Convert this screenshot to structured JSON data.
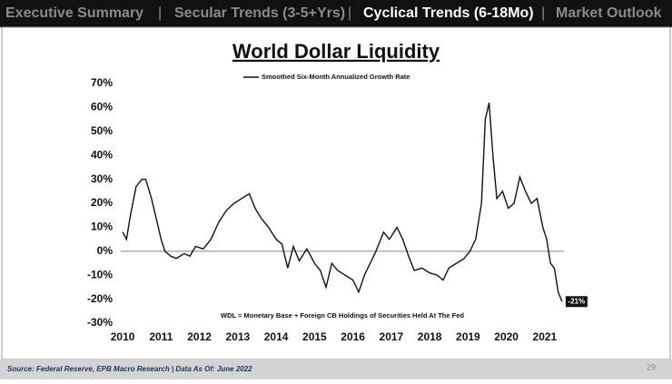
{
  "nav": [
    {
      "label": "Executive Summary",
      "active": false
    },
    {
      "label": "Secular Trends (3-5+Yrs)",
      "active": false
    },
    {
      "label": "Cyclical Trends (6-18Mo)",
      "active": true
    },
    {
      "label": "Market Outlook",
      "active": false
    }
  ],
  "chart_data": {
    "type": "line",
    "title": "World Dollar Liquidity",
    "note": "WDL = Monetary Base + Foreign CB Holdings of Securities Held At The Fed",
    "zero_line": true,
    "xlim": [
      2009.95,
      2021.5
    ],
    "xticks": [
      2010,
      2011,
      2012,
      2013,
      2014,
      2015,
      2016,
      2017,
      2018,
      2019,
      2020,
      2021
    ],
    "ylim": [
      -30,
      70
    ],
    "yticks": [
      {
        "value": -30,
        "label": "-30%"
      },
      {
        "value": -20,
        "label": "-20%"
      },
      {
        "value": -10,
        "label": "-10%"
      },
      {
        "value": 0,
        "label": "0%"
      },
      {
        "value": 10,
        "label": "10%"
      },
      {
        "value": 20,
        "label": "20%"
      },
      {
        "value": 30,
        "label": "30%"
      },
      {
        "value": 40,
        "label": "40%"
      },
      {
        "value": 50,
        "label": "50%"
      },
      {
        "value": 60,
        "label": "60%"
      },
      {
        "value": 70,
        "label": "70%"
      }
    ],
    "x": [
      2010.0,
      2010.1,
      2010.2,
      2010.35,
      2010.5,
      2010.6,
      2010.75,
      2010.9,
      2011.0,
      2011.1,
      2011.25,
      2011.4,
      2011.6,
      2011.75,
      2011.9,
      2012.1,
      2012.3,
      2012.5,
      2012.7,
      2012.9,
      2013.1,
      2013.3,
      2013.45,
      2013.6,
      2013.8,
      2014.0,
      2014.15,
      2014.3,
      2014.45,
      2014.6,
      2014.8,
      2015.0,
      2015.15,
      2015.3,
      2015.45,
      2015.6,
      2015.8,
      2016.0,
      2016.15,
      2016.3,
      2016.45,
      2016.6,
      2016.8,
      2016.95,
      2017.15,
      2017.3,
      2017.45,
      2017.6,
      2017.8,
      2018.0,
      2018.2,
      2018.35,
      2018.5,
      2018.7,
      2018.9,
      2019.05,
      2019.2,
      2019.35,
      2019.45,
      2019.55,
      2019.65,
      2019.75,
      2019.9,
      2020.05,
      2020.2,
      2020.35,
      2020.5,
      2020.65,
      2020.8,
      2020.95,
      2021.05,
      2021.15,
      2021.25,
      2021.35,
      2021.45
    ],
    "series": [
      {
        "name": "Smoothed Six-Month Annualized Growth Rate",
        "color": "#111111",
        "values": [
          8,
          5,
          15,
          27,
          30,
          30,
          22,
          12,
          5,
          0,
          -2,
          -3,
          -1,
          -2,
          2,
          1,
          5,
          12,
          17,
          20,
          22,
          24,
          18,
          14,
          10,
          5,
          3,
          -7,
          2,
          -4,
          1,
          -5,
          -8,
          -15,
          -5,
          -8,
          -10,
          -12,
          -17,
          -10,
          -5,
          0,
          8,
          5,
          10,
          5,
          -2,
          -8,
          -7,
          -9,
          -10,
          -12,
          -7,
          -5,
          -3,
          0,
          5,
          20,
          55,
          62,
          40,
          22,
          25,
          18,
          20,
          31,
          25,
          20,
          22,
          10,
          5,
          -5,
          -7,
          -17,
          -21
        ],
        "end_label": {
          "value": -21,
          "label": "-21%"
        }
      }
    ]
  },
  "footer": {
    "source": "Source: Federal Reserve, EPB Macro Research   |   Data As Of: June 2022",
    "page": "29"
  }
}
